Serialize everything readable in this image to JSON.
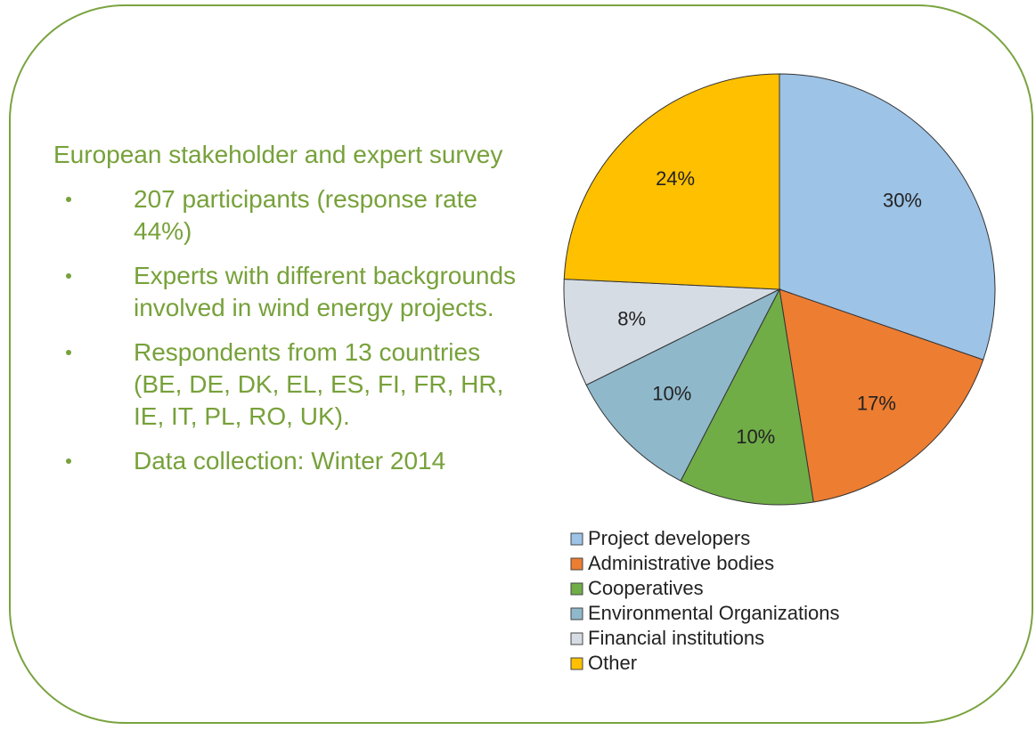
{
  "text": {
    "heading": "European stakeholder and expert survey",
    "bullets": [
      "207 participants (response rate 44%)",
      "Experts with different backgrounds involved in wind energy projects.",
      "Respondents from 13 countries (BE, DE, DK, EL, ES, FI, FR, HR, IE, IT, PL, RO, UK).",
      "Data collection: Winter 2014"
    ]
  },
  "chart_data": {
    "type": "pie",
    "categories": [
      "Project developers",
      "Administrative bodies",
      "Cooperatives",
      "Environmental Organizations",
      "Financial institutions",
      "Other"
    ],
    "values": [
      30,
      17,
      10,
      10,
      8,
      24
    ],
    "value_labels": [
      "30%",
      "17%",
      "10%",
      "10%",
      "8%",
      "24%"
    ],
    "colors": [
      "#9dc3e6",
      "#ed7d31",
      "#70ad47",
      "#8fb8cb",
      "#d6dce4",
      "#ffc000"
    ],
    "legend": "bottom"
  }
}
